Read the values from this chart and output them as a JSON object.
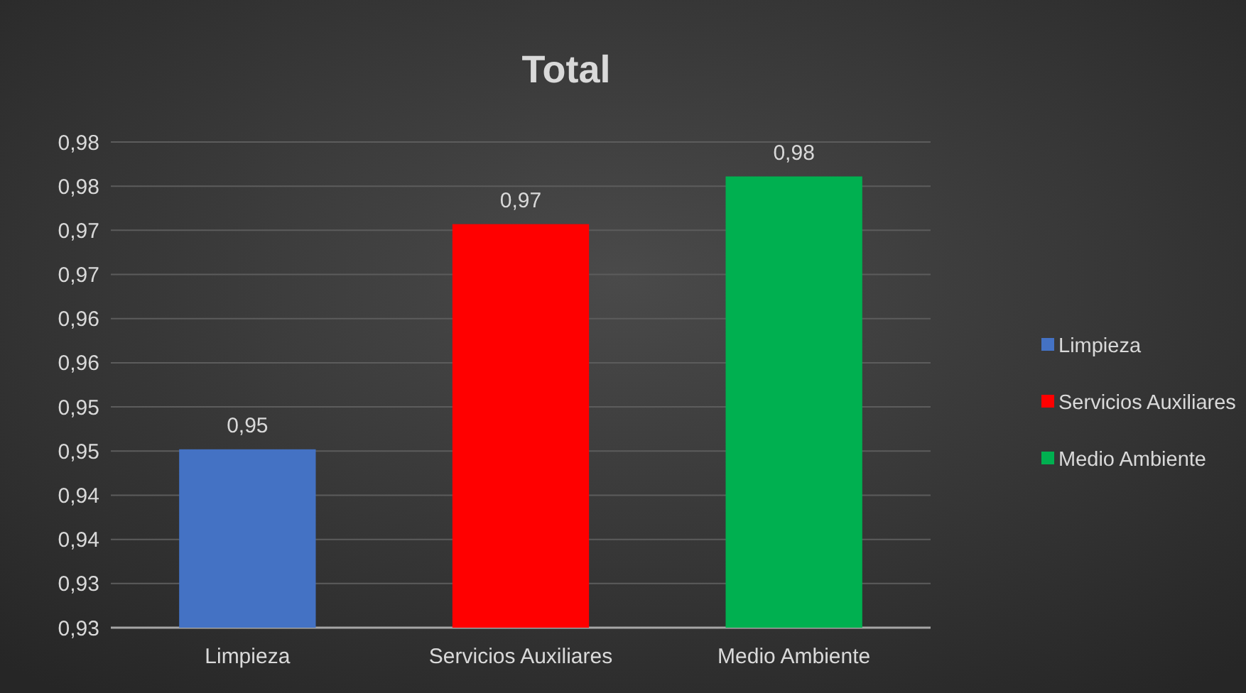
{
  "chart_data": {
    "type": "bar",
    "title": "Total",
    "categories": [
      "Limpieza",
      "Servicios Auxiliares",
      "Medio Ambiente"
    ],
    "series": [
      {
        "name": "Limpieza",
        "color": "#4472c4",
        "values": [
          0.9452,
          null,
          null
        ],
        "value_labels": [
          "0,95",
          null,
          null
        ]
      },
      {
        "name": "Servicios Auxiliares",
        "color": "#ff0000",
        "values": [
          null,
          0.9707,
          null
        ],
        "value_labels": [
          null,
          "0,97",
          null
        ]
      },
      {
        "name": "Medio Ambiente",
        "color": "#00b050",
        "values": [
          null,
          null,
          0.9761
        ],
        "value_labels": [
          null,
          null,
          "0,98"
        ]
      }
    ],
    "stacked": true,
    "ylim": [
      0.925,
      0.98
    ],
    "yticks": [
      {
        "value": 0.925,
        "label": "0,93"
      },
      {
        "value": 0.93,
        "label": "0,93"
      },
      {
        "value": 0.935,
        "label": "0,94"
      },
      {
        "value": 0.94,
        "label": "0,94"
      },
      {
        "value": 0.945,
        "label": "0,95"
      },
      {
        "value": 0.95,
        "label": "0,95"
      },
      {
        "value": 0.955,
        "label": "0,96"
      },
      {
        "value": 0.96,
        "label": "0,96"
      },
      {
        "value": 0.965,
        "label": "0,97"
      },
      {
        "value": 0.97,
        "label": "0,97"
      },
      {
        "value": 0.975,
        "label": "0,98"
      },
      {
        "value": 0.98,
        "label": "0,98"
      }
    ],
    "grid": "y",
    "legend": "right"
  }
}
